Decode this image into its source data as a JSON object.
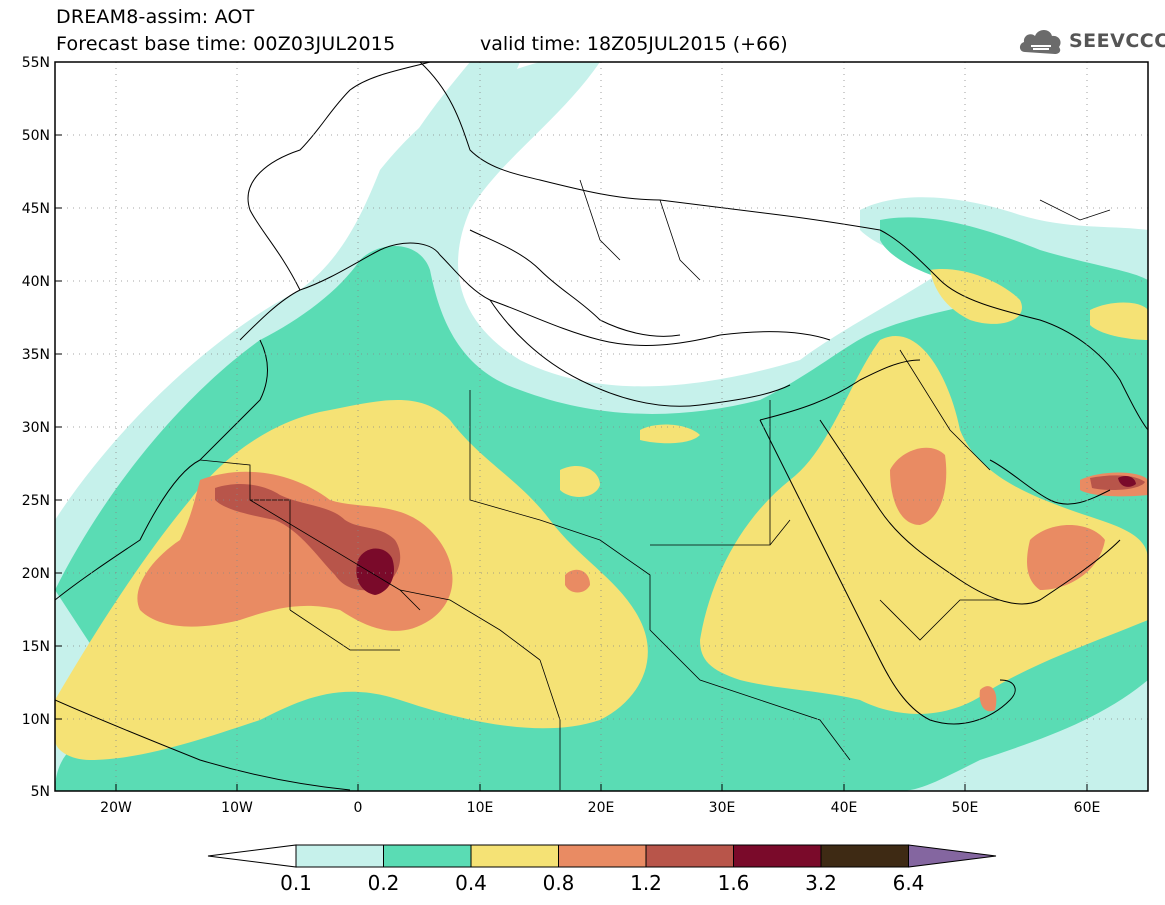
{
  "title": {
    "line1": "DREAM8-assim: AOT",
    "line2": "Forecast base time: 00Z03JUL2015",
    "valid": "valid time: 18Z05JUL2015 (+66)"
  },
  "logo": {
    "text": "SEEVCCC",
    "icon": "cloud-icon"
  },
  "map": {
    "lon_range": [
      -25,
      65
    ],
    "lat_range": [
      5,
      55
    ],
    "lat_ticks": [
      "55N",
      "50N",
      "45N",
      "40N",
      "35N",
      "30N",
      "25N",
      "20N",
      "15N",
      "10N",
      "5N"
    ],
    "lon_ticks": [
      "20W",
      "10W",
      "0",
      "10E",
      "20E",
      "30E",
      "40E",
      "50E",
      "60E"
    ],
    "grid": "dotted"
  },
  "colorbar": {
    "labels": [
      "0.1",
      "0.2",
      "0.4",
      "0.8",
      "1.2",
      "1.6",
      "3.2",
      "6.4"
    ],
    "colors": [
      "#ffffff",
      "#c6f1eb",
      "#5adcb4",
      "#f5e275",
      "#e98b63",
      "#b8554a",
      "#7a0a2a",
      "#3e2a14",
      "#8466a0"
    ]
  }
}
